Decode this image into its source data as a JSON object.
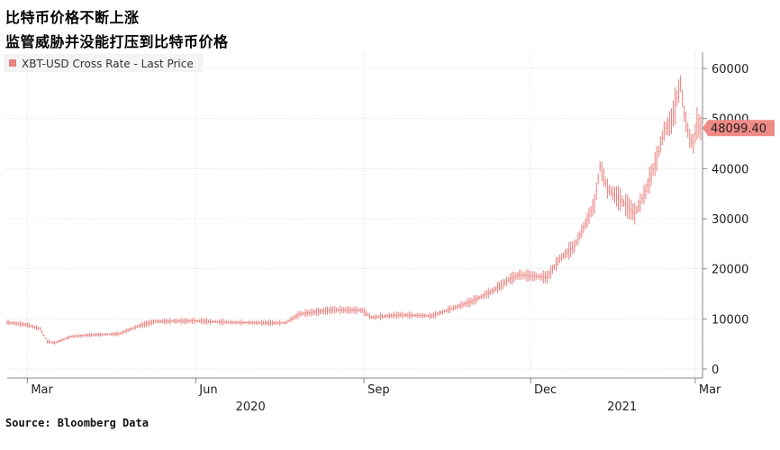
{
  "header": {
    "title_line1": "比特币价格不断上涨",
    "title_line2": "监管威胁并没能打压到比特币价格"
  },
  "source": "Source: Bloomberg Data",
  "colors": {
    "series": "#e8827f",
    "last_price_bg": "#f08a86",
    "grid": "#dddddd",
    "axis": "#888888"
  },
  "chart_data": {
    "type": "line",
    "legend": [
      "XBT-USD Cross Rate - Last Price"
    ],
    "last_price_label": "48099.40",
    "last_price": 48099.4,
    "y_axis_side": "right",
    "ylim": [
      0,
      62000
    ],
    "yticks": [
      0,
      10000,
      20000,
      30000,
      40000,
      50000,
      60000
    ],
    "xlim": [
      "2020-02-19",
      "2021-03-05"
    ],
    "xtick_labels": [
      {
        "date": "2020-03-01",
        "label": "Mar"
      },
      {
        "date": "2020-06-01",
        "label": "Jun"
      },
      {
        "date": "2020-09-01",
        "label": "Sep"
      },
      {
        "date": "2020-12-01",
        "label": "Dec"
      },
      {
        "date": "2021-03-01",
        "label": "Mar"
      }
    ],
    "year_labels": [
      {
        "date": "2020-07-01",
        "label": "2020"
      },
      {
        "date": "2021-01-20",
        "label": "2021"
      }
    ],
    "grid": true,
    "series": [
      {
        "name": "XBT-USD Cross Rate - Last Price",
        "points": [
          [
            "2020-02-19",
            9300
          ],
          [
            "2020-03-01",
            8800
          ],
          [
            "2020-03-08",
            8000
          ],
          [
            "2020-03-12",
            5500
          ],
          [
            "2020-03-16",
            5200
          ],
          [
            "2020-03-25",
            6500
          ],
          [
            "2020-04-05",
            6800
          ],
          [
            "2020-04-20",
            7000
          ],
          [
            "2020-05-01",
            8600
          ],
          [
            "2020-05-10",
            9500
          ],
          [
            "2020-06-01",
            9600
          ],
          [
            "2020-06-20",
            9300
          ],
          [
            "2020-07-10",
            9200
          ],
          [
            "2020-07-20",
            9200
          ],
          [
            "2020-07-28",
            11000
          ],
          [
            "2020-08-15",
            11800
          ],
          [
            "2020-08-31",
            11700
          ],
          [
            "2020-09-05",
            10300
          ],
          [
            "2020-09-20",
            10800
          ],
          [
            "2020-10-08",
            10600
          ],
          [
            "2020-10-20",
            12200
          ],
          [
            "2020-10-30",
            13500
          ],
          [
            "2020-11-10",
            15500
          ],
          [
            "2020-11-20",
            18000
          ],
          [
            "2020-11-25",
            18800
          ],
          [
            "2020-12-10",
            18300
          ],
          [
            "2020-12-17",
            22000
          ],
          [
            "2020-12-25",
            24500
          ],
          [
            "2020-12-31",
            29000
          ],
          [
            "2021-01-05",
            33000
          ],
          [
            "2021-01-08",
            40500
          ],
          [
            "2021-01-12",
            36000
          ],
          [
            "2021-01-20",
            33500
          ],
          [
            "2021-01-27",
            31000
          ],
          [
            "2021-02-02",
            35500
          ],
          [
            "2021-02-08",
            42000
          ],
          [
            "2021-02-12",
            47500
          ],
          [
            "2021-02-16",
            49500
          ],
          [
            "2021-02-21",
            57000
          ],
          [
            "2021-02-23",
            51000
          ],
          [
            "2021-02-26",
            46000
          ],
          [
            "2021-02-28",
            45000
          ],
          [
            "2021-03-02",
            49000
          ],
          [
            "2021-03-04",
            48099
          ]
        ]
      }
    ]
  }
}
